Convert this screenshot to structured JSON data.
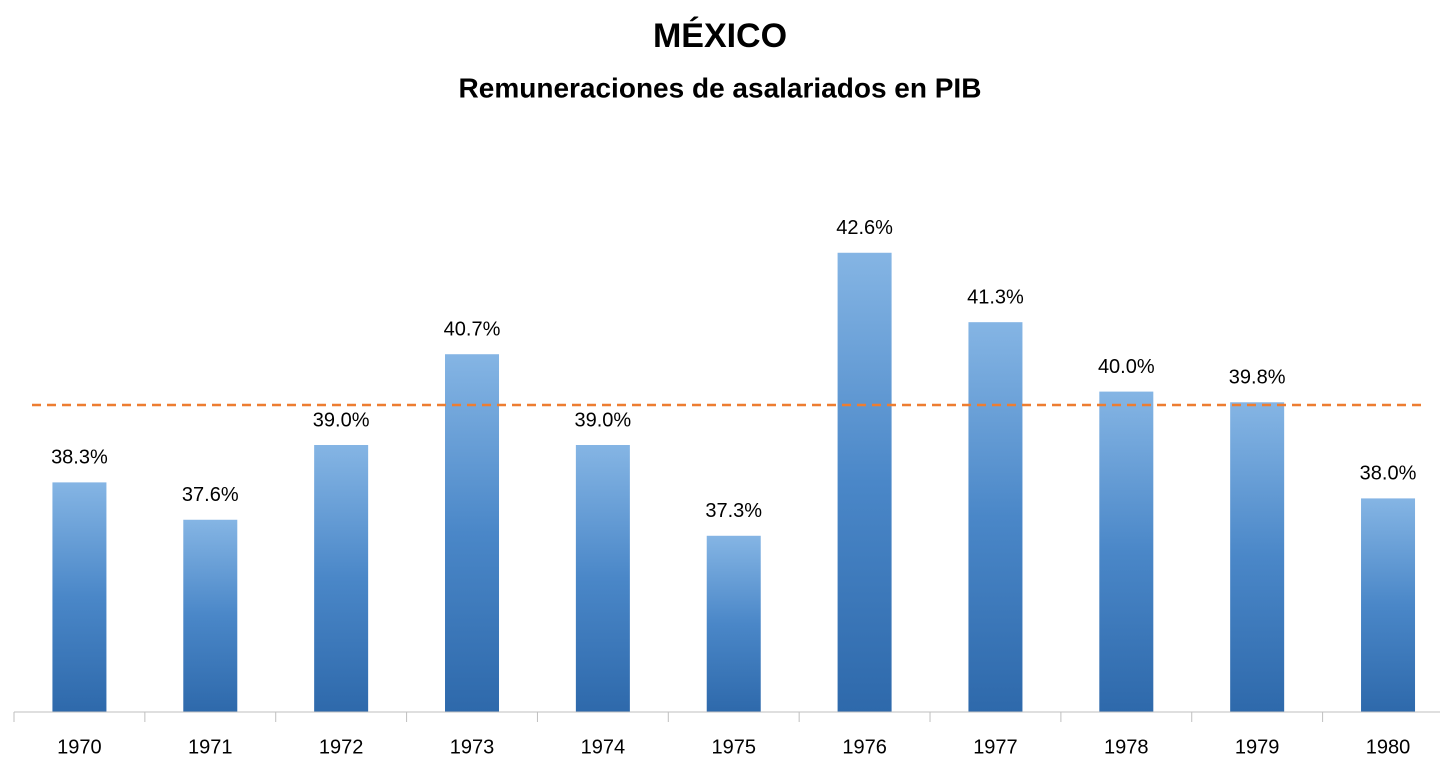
{
  "chart_data": {
    "type": "bar",
    "title": "MÉXICO",
    "subtitle": "Remuneraciones de asalariados en PIB",
    "categories": [
      "1970",
      "1971",
      "1972",
      "1973",
      "1974",
      "1975",
      "1976",
      "1977",
      "1978",
      "1979",
      "1980"
    ],
    "values": [
      38.3,
      37.6,
      39.0,
      40.7,
      39.0,
      37.3,
      42.6,
      41.3,
      40.0,
      39.8,
      38.0
    ],
    "value_labels": [
      "38.3%",
      "37.6%",
      "39.0%",
      "40.7%",
      "39.0%",
      "37.3%",
      "42.6%",
      "41.3%",
      "40.0%",
      "39.8%",
      "38.0%"
    ],
    "color": "#4a87c8",
    "reference_line": 39.75,
    "reference_color": "#ed7d31",
    "ylim": [
      34,
      44
    ]
  }
}
